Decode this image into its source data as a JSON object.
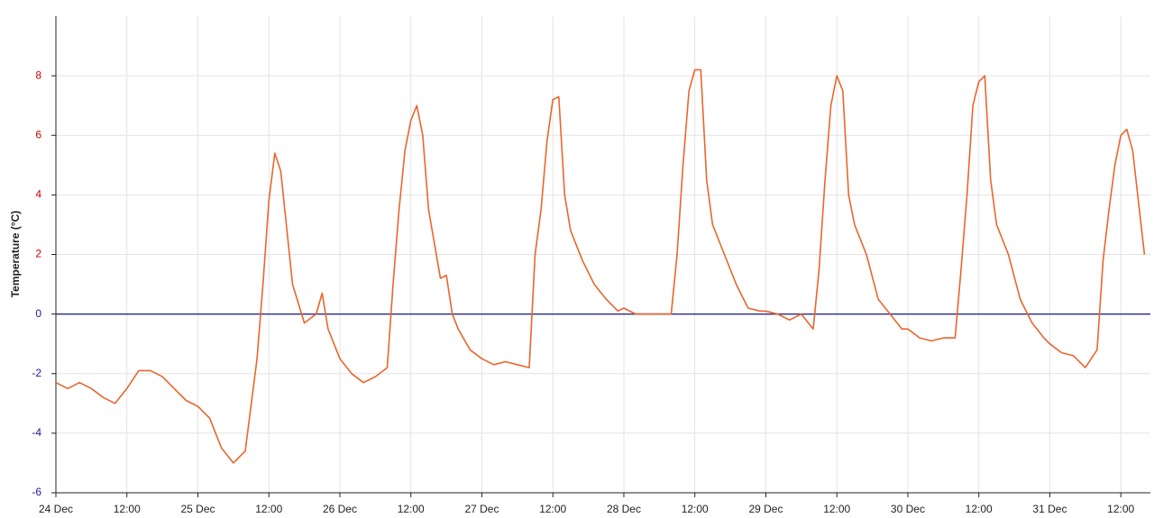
{
  "chart_data": {
    "type": "line",
    "ylabel": "Temperature (°C)",
    "x": [
      "24 Dec 00:00",
      "24 Dec 02:00",
      "24 Dec 04:00",
      "24 Dec 06:00",
      "24 Dec 08:00",
      "24 Dec 10:00",
      "24 Dec 12:00",
      "24 Dec 14:00",
      "24 Dec 16:00",
      "24 Dec 18:00",
      "24 Dec 20:00",
      "24 Dec 22:00",
      "25 Dec 00:00",
      "25 Dec 02:00",
      "25 Dec 04:00",
      "25 Dec 06:00",
      "25 Dec 08:00",
      "25 Dec 10:00",
      "25 Dec 11:00",
      "25 Dec 12:00",
      "25 Dec 13:00",
      "25 Dec 14:00",
      "25 Dec 16:00",
      "25 Dec 18:00",
      "25 Dec 20:00",
      "25 Dec 21:00",
      "25 Dec 22:00",
      "26 Dec 00:00",
      "26 Dec 02:00",
      "26 Dec 04:00",
      "26 Dec 06:00",
      "26 Dec 08:00",
      "26 Dec 09:00",
      "26 Dec 10:00",
      "26 Dec 11:00",
      "26 Dec 12:00",
      "26 Dec 13:00",
      "26 Dec 14:00",
      "26 Dec 15:00",
      "26 Dec 17:00",
      "26 Dec 18:00",
      "26 Dec 19:00",
      "26 Dec 20:00",
      "26 Dec 22:00",
      "27 Dec 00:00",
      "27 Dec 02:00",
      "27 Dec 04:00",
      "27 Dec 06:00",
      "27 Dec 08:00",
      "27 Dec 09:00",
      "27 Dec 10:00",
      "27 Dec 11:00",
      "27 Dec 12:00",
      "27 Dec 13:00",
      "27 Dec 14:00",
      "27 Dec 15:00",
      "27 Dec 17:00",
      "27 Dec 19:00",
      "27 Dec 21:00",
      "27 Dec 23:00",
      "28 Dec 00:00",
      "28 Dec 02:00",
      "28 Dec 04:00",
      "28 Dec 06:00",
      "28 Dec 08:00",
      "28 Dec 09:00",
      "28 Dec 10:00",
      "28 Dec 11:00",
      "28 Dec 12:00",
      "28 Dec 13:00",
      "28 Dec 14:00",
      "28 Dec 15:00",
      "28 Dec 17:00",
      "28 Dec 19:00",
      "28 Dec 21:00",
      "28 Dec 23:00",
      "29 Dec 00:00",
      "29 Dec 02:00",
      "29 Dec 04:00",
      "29 Dec 06:00",
      "29 Dec 08:00",
      "29 Dec 09:00",
      "29 Dec 10:00",
      "29 Dec 11:00",
      "29 Dec 12:00",
      "29 Dec 13:00",
      "29 Dec 14:00",
      "29 Dec 15:00",
      "29 Dec 17:00",
      "29 Dec 19:00",
      "29 Dec 21:00",
      "29 Dec 23:00",
      "30 Dec 00:00",
      "30 Dec 02:00",
      "30 Dec 04:00",
      "30 Dec 06:00",
      "30 Dec 08:00",
      "30 Dec 09:00",
      "30 Dec 10:00",
      "30 Dec 11:00",
      "30 Dec 12:00",
      "30 Dec 13:00",
      "30 Dec 14:00",
      "30 Dec 15:00",
      "30 Dec 17:00",
      "30 Dec 19:00",
      "30 Dec 21:00",
      "30 Dec 23:00",
      "31 Dec 00:00",
      "31 Dec 02:00",
      "31 Dec 04:00",
      "31 Dec 06:00",
      "31 Dec 08:00",
      "31 Dec 09:00",
      "31 Dec 10:00",
      "31 Dec 11:00",
      "31 Dec 12:00",
      "31 Dec 13:00",
      "31 Dec 14:00",
      "31 Dec 16:00"
    ],
    "values": [
      -2.3,
      -2.5,
      -2.3,
      -2.5,
      -2.8,
      -3.0,
      -2.5,
      -1.9,
      -1.9,
      -2.1,
      -2.5,
      -2.9,
      -3.1,
      -3.5,
      -4.5,
      -5.0,
      -4.6,
      -1.5,
      1.0,
      3.8,
      5.4,
      4.8,
      1.0,
      -0.3,
      0.0,
      0.7,
      -0.5,
      -1.5,
      -2.0,
      -2.3,
      -2.1,
      -1.8,
      1.0,
      3.5,
      5.5,
      6.5,
      7.0,
      6.0,
      3.5,
      1.2,
      1.3,
      0.0,
      -0.5,
      -1.2,
      -1.5,
      -1.7,
      -1.6,
      -1.7,
      -1.8,
      2.0,
      3.5,
      5.8,
      7.2,
      7.3,
      4.0,
      2.8,
      1.8,
      1.0,
      0.5,
      0.1,
      0.2,
      0.0,
      0.0,
      0.0,
      0.0,
      2.0,
      5.0,
      7.5,
      8.2,
      8.2,
      4.5,
      3.0,
      2.0,
      1.0,
      0.2,
      0.1,
      0.1,
      0.0,
      -0.2,
      0.0,
      -0.5,
      1.5,
      4.5,
      7.0,
      8.0,
      7.5,
      4.0,
      3.0,
      2.0,
      0.5,
      0.0,
      -0.5,
      -0.5,
      -0.8,
      -0.9,
      -0.8,
      -0.8,
      1.5,
      4.0,
      7.0,
      7.8,
      8.0,
      4.5,
      3.0,
      2.0,
      0.5,
      -0.3,
      -0.8,
      -1.0,
      -1.3,
      -1.4,
      -1.8,
      -1.2,
      1.8,
      3.5,
      5.0,
      6.0,
      6.2,
      5.5,
      2.0
    ],
    "color": "#e8662e",
    "xlim": [
      "24 Dec 00:00",
      "31 Dec 17:00"
    ],
    "xticks": [
      {
        "value": "24 Dec 00:00",
        "label": "24 Dec"
      },
      {
        "value": "24 Dec 12:00",
        "label": "12:00"
      },
      {
        "value": "25 Dec 00:00",
        "label": "25 Dec"
      },
      {
        "value": "25 Dec 12:00",
        "label": "12:00"
      },
      {
        "value": "26 Dec 00:00",
        "label": "26 Dec"
      },
      {
        "value": "26 Dec 12:00",
        "label": "12:00"
      },
      {
        "value": "27 Dec 00:00",
        "label": "27 Dec"
      },
      {
        "value": "27 Dec 12:00",
        "label": "12:00"
      },
      {
        "value": "28 Dec 00:00",
        "label": "28 Dec"
      },
      {
        "value": "28 Dec 12:00",
        "label": "12:00"
      },
      {
        "value": "29 Dec 00:00",
        "label": "29 Dec"
      },
      {
        "value": "29 Dec 12:00",
        "label": "12:00"
      },
      {
        "value": "30 Dec 00:00",
        "label": "30 Dec"
      },
      {
        "value": "30 Dec 12:00",
        "label": "12:00"
      },
      {
        "value": "31 Dec 00:00",
        "label": "31 Dec"
      },
      {
        "value": "31 Dec 12:00",
        "label": "12:00"
      }
    ],
    "ylim": [
      -6,
      10
    ],
    "yticks": [
      -6,
      -4,
      -2,
      0,
      2,
      4,
      6,
      8
    ],
    "grid": true,
    "ytick_colors": {
      "above_zero": "#cc0000",
      "at_or_below_zero": "#1a1a99"
    },
    "zero_line_color": "#333388"
  }
}
